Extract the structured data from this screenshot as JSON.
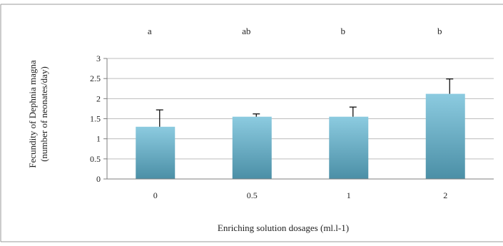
{
  "chart_data": {
    "type": "bar",
    "categories": [
      "0",
      "0.5",
      "1",
      "2"
    ],
    "values": [
      1.3,
      1.55,
      1.55,
      2.12
    ],
    "error_bars": [
      0.42,
      0.07,
      0.24,
      0.37
    ],
    "significance_letters": [
      "a",
      "ab",
      "b",
      "b"
    ],
    "title": "",
    "xlabel": "Enriching solution dosages (ml.l-1)",
    "ylabel_line1": "Fecundity of Dephnia magna",
    "ylabel_line2": "(number of neonates/day)",
    "ylim": [
      0,
      3
    ],
    "yticks": [
      "0",
      "0.5",
      "1",
      "1.5",
      "2",
      "2.5",
      "3"
    ],
    "grid": true,
    "legend": "none",
    "colors": {
      "bar_top": "#8ccbe0",
      "bar_bottom": "#4b8fa6",
      "grid": "#bdbdbd",
      "axis": "#7f7f7f",
      "frame": "#9a9a9a"
    }
  }
}
